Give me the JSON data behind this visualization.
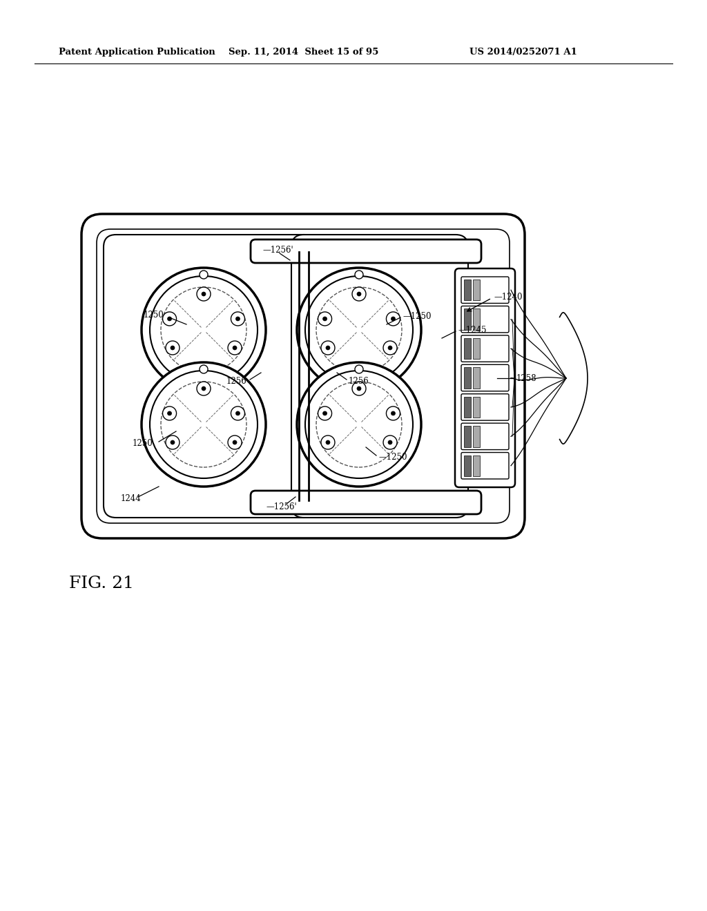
{
  "background_color": "#ffffff",
  "header_left": "Patent Application Publication",
  "header_mid": "Sep. 11, 2014  Sheet 15 of 95",
  "header_right": "US 2014/0252071 A1",
  "fig_label": "FIG. 21"
}
